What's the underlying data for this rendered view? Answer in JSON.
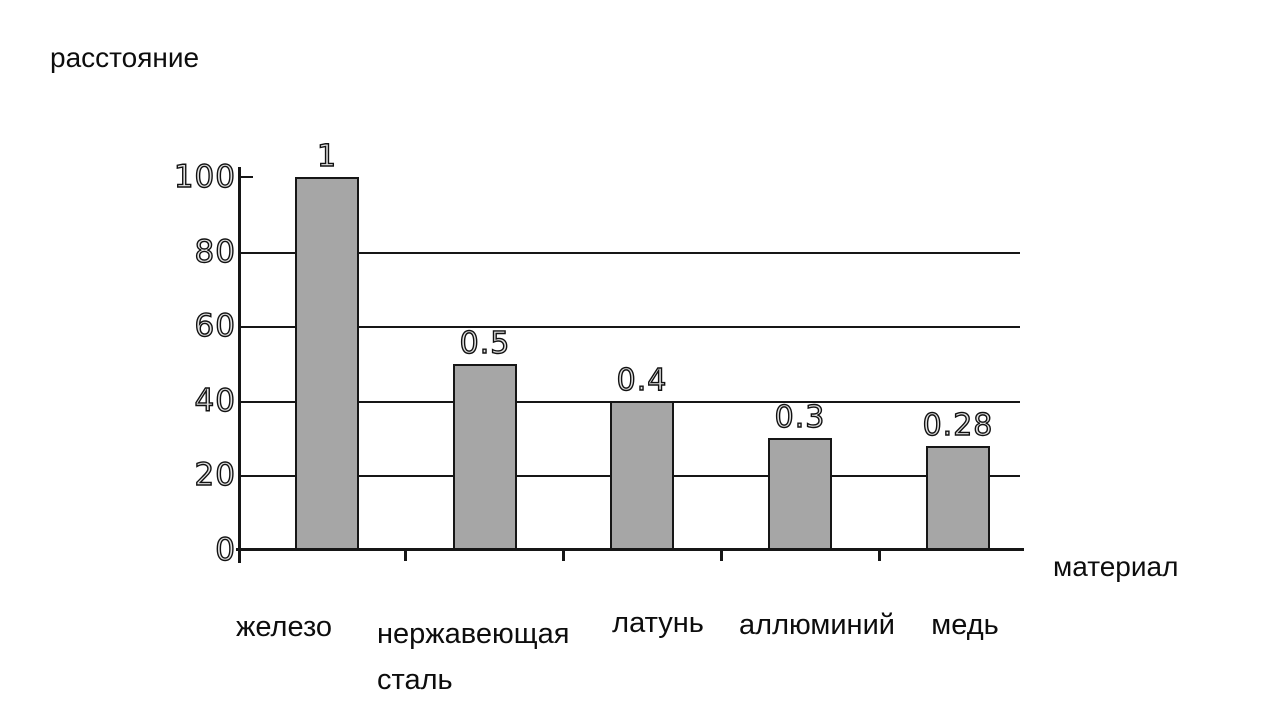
{
  "chart_data": {
    "type": "bar",
    "title": "",
    "ylabel": "расстояние",
    "xlabel": "материал",
    "categories": [
      "железо",
      "нержавеющая сталь",
      "латунь",
      "аллюминий",
      "медь"
    ],
    "values": [
      1,
      0.5,
      0.4,
      0.3,
      0.28
    ],
    "bar_labels": [
      "1",
      "0.5",
      "0.4",
      "0.3",
      "0.28"
    ],
    "y_ticks": [
      "0",
      "20",
      "40",
      "60",
      "80",
      "100"
    ],
    "ylim": [
      0,
      100
    ],
    "value_to_axis_scale": 100,
    "grid": true,
    "legend_position": "none",
    "bar_fill": "#a6a6a6",
    "bar_border": "#161616",
    "axis_color": "#161616",
    "background": "#ffffff"
  }
}
